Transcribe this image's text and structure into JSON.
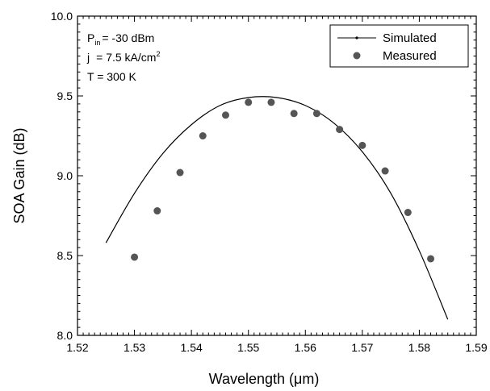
{
  "chart_data": {
    "type": "scatter",
    "xlabel": "Wavelength (μm)",
    "ylabel": "SOA Gain (dB)",
    "xlim": [
      1.52,
      1.59
    ],
    "ylim": [
      8.0,
      10.0
    ],
    "x_ticks": [
      "1.52",
      "1.53",
      "1.54",
      "1.55",
      "1.56",
      "1.57",
      "1.58",
      "1.59"
    ],
    "y_ticks": [
      "8.0",
      "8.5",
      "9.0",
      "9.5",
      "10.0"
    ],
    "grid": false,
    "legend_position": "top-right",
    "annotations": {
      "p_main": "P",
      "p_sub": "in",
      "p_value": "= -30 dBm",
      "j_main": "j",
      "j_value": "= 7.5 kA/cm",
      "j_sup": "2",
      "temp": "T = 300 K"
    },
    "series": [
      {
        "name": "Simulated",
        "kind": "line",
        "color": "#000000",
        "x": [
          1.525,
          1.53,
          1.535,
          1.54,
          1.545,
          1.55,
          1.555,
          1.56,
          1.565,
          1.57,
          1.575,
          1.58,
          1.585
        ],
        "y": [
          8.58,
          8.89,
          9.14,
          9.32,
          9.44,
          9.49,
          9.49,
          9.44,
          9.33,
          9.15,
          8.89,
          8.53,
          8.1
        ]
      },
      {
        "name": "Measured",
        "kind": "marker",
        "color": "#555555",
        "x": [
          1.53,
          1.534,
          1.538,
          1.542,
          1.546,
          1.55,
          1.554,
          1.558,
          1.562,
          1.566,
          1.57,
          1.574,
          1.578,
          1.582
        ],
        "y": [
          8.49,
          8.78,
          9.02,
          9.25,
          9.38,
          9.46,
          9.46,
          9.39,
          9.39,
          9.29,
          9.19,
          9.03,
          8.77,
          8.48
        ]
      }
    ]
  }
}
